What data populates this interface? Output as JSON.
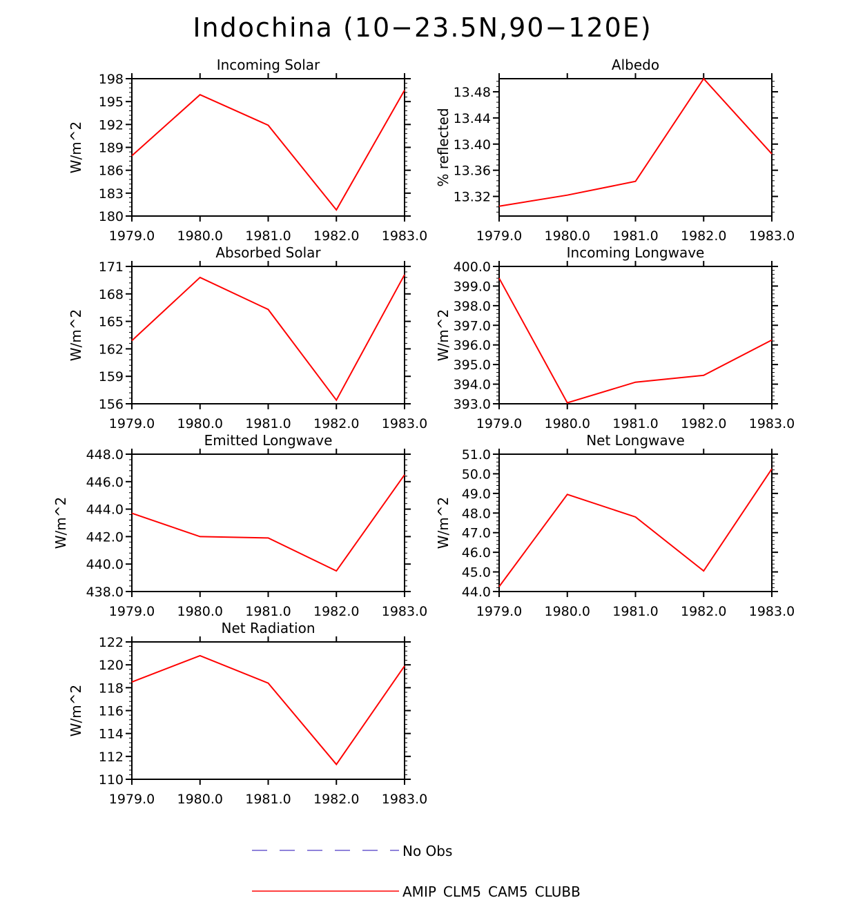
{
  "title": "Indochina (10−23.5N,90−120E)",
  "colors": {
    "model": "#ff0000",
    "obs": "#6a5acd",
    "axis": "#000000"
  },
  "legend": [
    {
      "label": "No Obs",
      "style": "dashed",
      "color": "#6a5acd"
    },
    {
      "label": "AMIP_CLM5_CAM5_CLUBB",
      "style": "solid",
      "color": "#ff0000"
    }
  ],
  "chart_data": [
    {
      "type": "line",
      "title": "Incoming Solar",
      "ylabel": "W/m^2",
      "x": [
        1979,
        1980,
        1981,
        1982,
        1983
      ],
      "xticks": [
        "1979.0",
        "1980.0",
        "1981.0",
        "1982.0",
        "1983.0"
      ],
      "ylim": [
        180,
        198
      ],
      "yticks": [
        "180",
        "183",
        "186",
        "189",
        "192",
        "195",
        "198"
      ],
      "series": [
        {
          "name": "AMIP_CLM5_CAM5_CLUBB",
          "values": [
            187.9,
            195.9,
            191.9,
            180.8,
            196.5
          ]
        }
      ]
    },
    {
      "type": "line",
      "title": "Albedo",
      "ylabel": "% reflected",
      "x": [
        1979,
        1980,
        1981,
        1982,
        1983
      ],
      "xticks": [
        "1979.0",
        "1980.0",
        "1981.0",
        "1982.0",
        "1983.0"
      ],
      "ylim": [
        13.29,
        13.5
      ],
      "yticks": [
        "13.32",
        "13.36",
        "13.40",
        "13.44",
        "13.48"
      ],
      "series": [
        {
          "name": "AMIP_CLM5_CAM5_CLUBB",
          "values": [
            13.305,
            13.322,
            13.343,
            13.5,
            13.385
          ]
        }
      ]
    },
    {
      "type": "line",
      "title": "Absorbed Solar",
      "ylabel": "W/m^2",
      "x": [
        1979,
        1980,
        1981,
        1982,
        1983
      ],
      "xticks": [
        "1979.0",
        "1980.0",
        "1981.0",
        "1982.0",
        "1983.0"
      ],
      "ylim": [
        156,
        171
      ],
      "yticks": [
        "156",
        "159",
        "162",
        "165",
        "168",
        "171"
      ],
      "series": [
        {
          "name": "AMIP_CLM5_CAM5_CLUBB",
          "values": [
            162.9,
            169.8,
            166.3,
            156.4,
            170.1
          ]
        }
      ]
    },
    {
      "type": "line",
      "title": "Incoming Longwave",
      "ylabel": "W/m^2",
      "x": [
        1979,
        1980,
        1981,
        1982,
        1983
      ],
      "xticks": [
        "1979.0",
        "1980.0",
        "1981.0",
        "1982.0",
        "1983.0"
      ],
      "ylim": [
        393,
        400
      ],
      "yticks": [
        "393.0",
        "394.0",
        "395.0",
        "396.0",
        "397.0",
        "398.0",
        "399.0",
        "400.0"
      ],
      "series": [
        {
          "name": "AMIP_CLM5_CAM5_CLUBB",
          "values": [
            399.4,
            393.05,
            394.1,
            394.45,
            396.25
          ]
        }
      ]
    },
    {
      "type": "line",
      "title": "Emitted Longwave",
      "ylabel": "W/m^2",
      "x": [
        1979,
        1980,
        1981,
        1982,
        1983
      ],
      "xticks": [
        "1979.0",
        "1980.0",
        "1981.0",
        "1982.0",
        "1983.0"
      ],
      "ylim": [
        438,
        448
      ],
      "yticks": [
        "438.0",
        "440.0",
        "442.0",
        "444.0",
        "446.0",
        "448.0"
      ],
      "series": [
        {
          "name": "AMIP_CLM5_CAM5_CLUBB",
          "values": [
            443.7,
            442.0,
            441.9,
            439.5,
            446.5
          ]
        }
      ]
    },
    {
      "type": "line",
      "title": "Net Longwave",
      "ylabel": "W/m^2",
      "x": [
        1979,
        1980,
        1981,
        1982,
        1983
      ],
      "xticks": [
        "1979.0",
        "1980.0",
        "1981.0",
        "1982.0",
        "1983.0"
      ],
      "ylim": [
        44,
        51
      ],
      "yticks": [
        "44.0",
        "45.0",
        "46.0",
        "47.0",
        "48.0",
        "49.0",
        "50.0",
        "51.0"
      ],
      "series": [
        {
          "name": "AMIP_CLM5_CAM5_CLUBB",
          "values": [
            44.25,
            48.95,
            47.8,
            45.05,
            50.25
          ]
        }
      ]
    },
    {
      "type": "line",
      "title": "Net Radiation",
      "ylabel": "W/m^2",
      "x": [
        1979,
        1980,
        1981,
        1982,
        1983
      ],
      "xticks": [
        "1979.0",
        "1980.0",
        "1981.0",
        "1982.0",
        "1983.0"
      ],
      "ylim": [
        110,
        122
      ],
      "yticks": [
        "110",
        "112",
        "114",
        "116",
        "118",
        "120",
        "122"
      ],
      "series": [
        {
          "name": "AMIP_CLM5_CAM5_CLUBB",
          "values": [
            118.5,
            120.8,
            118.4,
            111.3,
            119.9
          ]
        }
      ]
    }
  ]
}
